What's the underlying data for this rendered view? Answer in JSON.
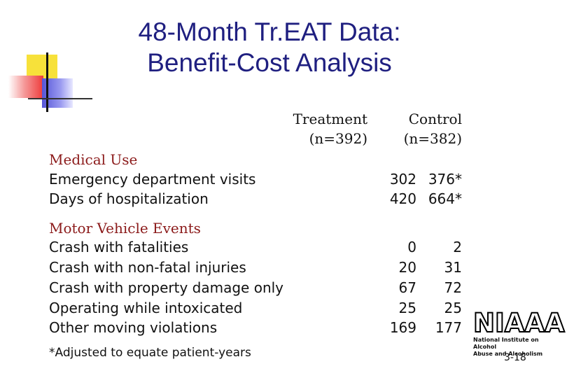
{
  "title": {
    "line1": "48-Month Tr.EAT Data:",
    "line2": "Benefit-Cost Analysis"
  },
  "columns": {
    "treatment": {
      "name": "Treatment",
      "n": "(n=392)"
    },
    "control": {
      "name": "Control",
      "n": "(n=382)"
    }
  },
  "sections": {
    "medical": {
      "title": "Medical Use",
      "rows": [
        {
          "label": "Emergency department visits",
          "treatment": "302",
          "control": "376*"
        },
        {
          "label": "Days of hospitalization",
          "treatment": "420",
          "control": "664*"
        }
      ]
    },
    "motor": {
      "title": "Motor Vehicle Events",
      "rows": [
        {
          "label": "Crash with fatalities",
          "treatment": "0",
          "control": "2"
        },
        {
          "label": "Crash with non-fatal injuries",
          "treatment": "20",
          "control": "31"
        },
        {
          "label": "Crash with property damage only",
          "treatment": "67",
          "control": "72"
        },
        {
          "label": "Operating while intoxicated",
          "treatment": "25",
          "control": "25"
        },
        {
          "label": "Other moving violations",
          "treatment": "169",
          "control": "177"
        }
      ]
    }
  },
  "footnote": "*Adjusted to equate patient-years",
  "logo": {
    "main": "NIAAA",
    "sub1": "National Institute on Alcohol",
    "sub2": "Abuse and Alcoholism"
  },
  "page_number": "3-18",
  "colors": {
    "title": "#1f1f80",
    "section_title": "#8b1a1a"
  }
}
